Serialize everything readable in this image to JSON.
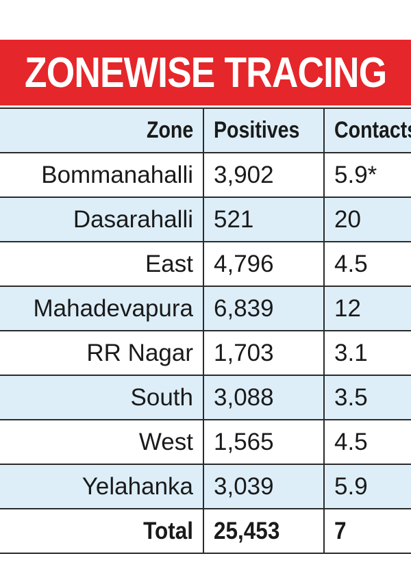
{
  "title": "ZONEWISE TRACING",
  "colors": {
    "title_bg": "#e5262a",
    "title_text": "#ffffff",
    "row_shade": "#ddeef8",
    "row_plain": "#ffffff"
  },
  "header": {
    "zone": "Zone",
    "positives": "Positives",
    "contacts": "Contacts"
  },
  "rows": [
    {
      "zone": "Bommanahalli",
      "positives": "3,902",
      "contacts": "5.9*"
    },
    {
      "zone": "Dasarahalli",
      "positives": "521",
      "contacts": "20"
    },
    {
      "zone": "East",
      "positives": "4,796",
      "contacts": "4.5"
    },
    {
      "zone": "Mahadevapura",
      "positives": "6,839",
      "contacts": "12"
    },
    {
      "zone": "RR Nagar",
      "positives": "1,703",
      "contacts": "3.1"
    },
    {
      "zone": "South",
      "positives": "3,088",
      "contacts": "3.5"
    },
    {
      "zone": "West",
      "positives": "1,565",
      "contacts": "4.5"
    },
    {
      "zone": "Yelahanka",
      "positives": "3,039",
      "contacts": "5.9"
    }
  ],
  "total": {
    "zone": "Total",
    "positives": "25,453",
    "contacts": "7"
  },
  "chart_data": {
    "type": "table",
    "title": "ZONEWISE TRACING",
    "columns": [
      "Zone",
      "Positives",
      "Contacts"
    ],
    "rows": [
      [
        "Bommanahalli",
        3902,
        "5.9*"
      ],
      [
        "Dasarahalli",
        521,
        20
      ],
      [
        "East",
        4796,
        4.5
      ],
      [
        "Mahadevapura",
        6839,
        12
      ],
      [
        "RR Nagar",
        1703,
        3.1
      ],
      [
        "South",
        3088,
        3.5
      ],
      [
        "West",
        1565,
        4.5
      ],
      [
        "Yelahanka",
        3039,
        5.9
      ],
      [
        "Total",
        25453,
        7
      ]
    ]
  }
}
